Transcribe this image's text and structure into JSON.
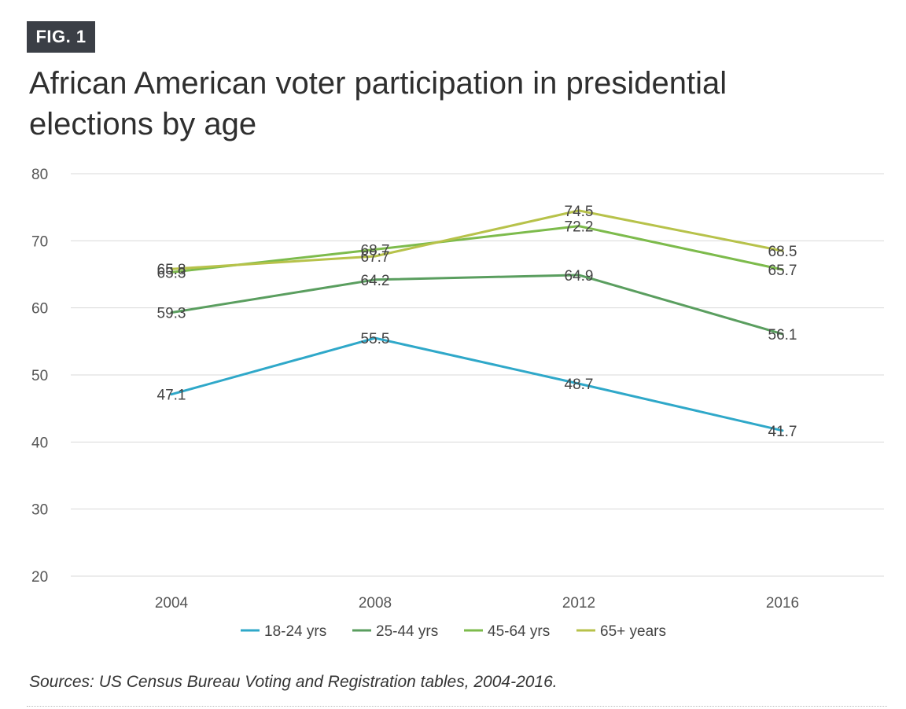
{
  "figure": {
    "badge": "FIG. 1",
    "title": "African American voter participation in presidential elections by age",
    "source": "Sources: US Census Bureau Voting and Registration tables, 2004-2016."
  },
  "chart_data": {
    "type": "line",
    "categories": [
      "2004",
      "2008",
      "2012",
      "2016"
    ],
    "ylim": [
      20,
      80
    ],
    "yticks": [
      20,
      30,
      40,
      50,
      60,
      70,
      80
    ],
    "grid": true,
    "legend_position": "bottom",
    "series": [
      {
        "name": "18-24 yrs",
        "color": "#2fa8c9",
        "values": [
          47.1,
          55.5,
          48.7,
          41.7
        ],
        "labels": [
          "47.1",
          "55.5",
          "48.7",
          "41.7"
        ]
      },
      {
        "name": "25-44 yrs",
        "color": "#5a9e5f",
        "values": [
          59.3,
          64.2,
          64.9,
          56.1
        ],
        "labels": [
          "59.3",
          "64.2",
          "64.9",
          "56.1"
        ]
      },
      {
        "name": "45-64 yrs",
        "color": "#7dbb4c",
        "values": [
          65.3,
          68.7,
          72.2,
          65.7
        ],
        "labels": [
          "65.3",
          "68.7",
          "72.2",
          "65.7"
        ]
      },
      {
        "name": "65+ years",
        "color": "#b7c24a",
        "values": [
          65.8,
          67.7,
          74.5,
          68.5
        ],
        "labels": [
          "65.8",
          "67.7",
          "74.5",
          "68.5"
        ]
      }
    ]
  }
}
